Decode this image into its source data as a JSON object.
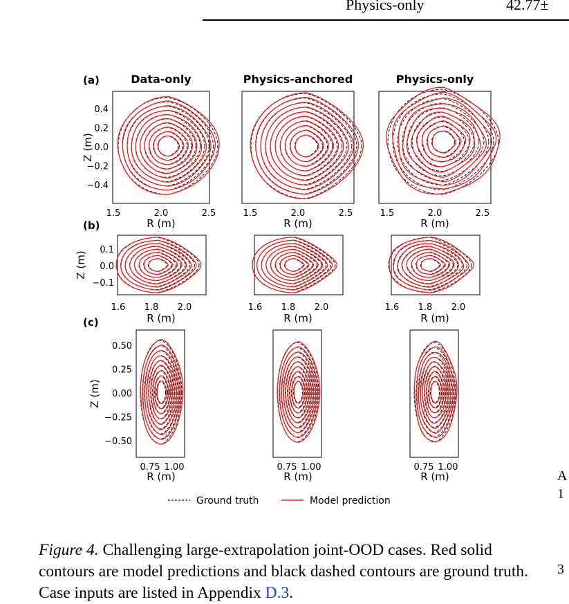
{
  "header": {
    "table_row_label": "Physics-only",
    "table_row_value": "42.77±"
  },
  "figure": {
    "panel_labels": [
      "(a)",
      "(b)",
      "(c)"
    ],
    "column_titles": [
      "Data-only",
      "Physics-anchored",
      "Physics-only"
    ],
    "rows": [
      {
        "ylabel": "Z (m)",
        "xlabel": "R (m)",
        "yticks": [
          "0.4",
          "0.2",
          "0.0",
          "−0.2",
          "−0.4"
        ],
        "xticks": [
          "1.5",
          "2.0",
          "2.5"
        ]
      },
      {
        "ylabel": "Z (m)",
        "xlabel": "R (m)",
        "yticks": [
          "0.1",
          "0.0",
          "−0.1"
        ],
        "xticks": [
          "1.6",
          "1.8",
          "2.0"
        ]
      },
      {
        "ylabel": "Z (m)",
        "xlabel": "R (m)",
        "yticks": [
          "0.50",
          "0.25",
          "0.00",
          "−0.25",
          "−0.50"
        ],
        "xticks": [
          "0.75",
          "1.00"
        ]
      }
    ],
    "legend": {
      "ground_truth": "Ground truth",
      "model_prediction": "Model prediction"
    },
    "colors": {
      "prediction": "#e8231f",
      "truth": "#111111"
    }
  },
  "caption": {
    "lead": "Figure 4.",
    "body": "Challenging large-extrapolation joint-OOD cases. Red solid contours are model predictions and black dashed contours are ground truth. Case inputs are listed in Appendix ",
    "ref": "D.3",
    "end": "."
  },
  "edge_glyphs": [
    "A",
    "1",
    "3"
  ]
}
